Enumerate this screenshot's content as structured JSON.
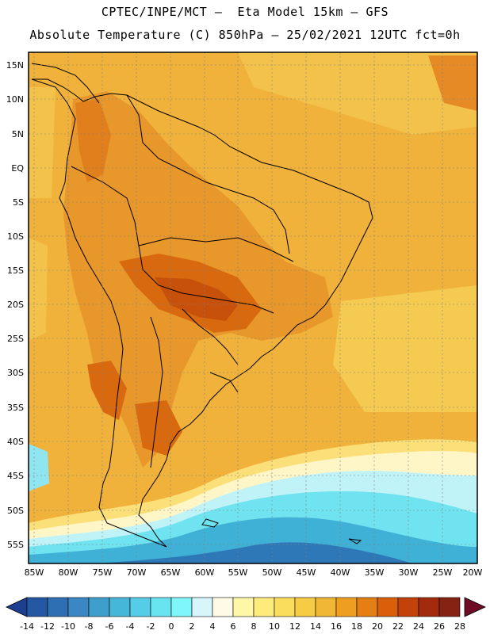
{
  "header": {
    "line1": "CPTEC/INPE/MCT –  Eta Model 15km – GFS",
    "line2": "Absolute Temperature (C) 850hPa – 25/02/2021 12UTC fct=0h"
  },
  "map": {
    "lat_labels": [
      "15N",
      "10N",
      "5N",
      "EQ",
      "5S",
      "10S",
      "15S",
      "20S",
      "25S",
      "30S",
      "35S",
      "40S",
      "45S",
      "50S",
      "55S"
    ],
    "lon_labels": [
      "85W",
      "80W",
      "75W",
      "70W",
      "65W",
      "60W",
      "55W",
      "50W",
      "45W",
      "40W",
      "35W",
      "30W",
      "25W",
      "20W"
    ]
  },
  "legend": {
    "colors": [
      "#1e3f8f",
      "#2458a2",
      "#2e6fb3",
      "#3a87c4",
      "#3f9fcc",
      "#47b7d9",
      "#56cde6",
      "#67e4ef",
      "#7ff6fa",
      "#d6f6fb",
      "#fffbe6",
      "#fff7a8",
      "#fdeb7c",
      "#fbdd5e",
      "#f6cb45",
      "#f1b634",
      "#ef9f1f",
      "#e57e13",
      "#d95f0b",
      "#c2420a",
      "#a32a0c",
      "#842214",
      "#6e0c26"
    ],
    "labels": [
      "-14",
      "-12",
      "-10",
      "-8",
      "-6",
      "-4",
      "-2",
      "0",
      "2",
      "4",
      "6",
      "8",
      "10",
      "12",
      "14",
      "16",
      "18",
      "20",
      "22",
      "24",
      "26",
      "28"
    ]
  }
}
